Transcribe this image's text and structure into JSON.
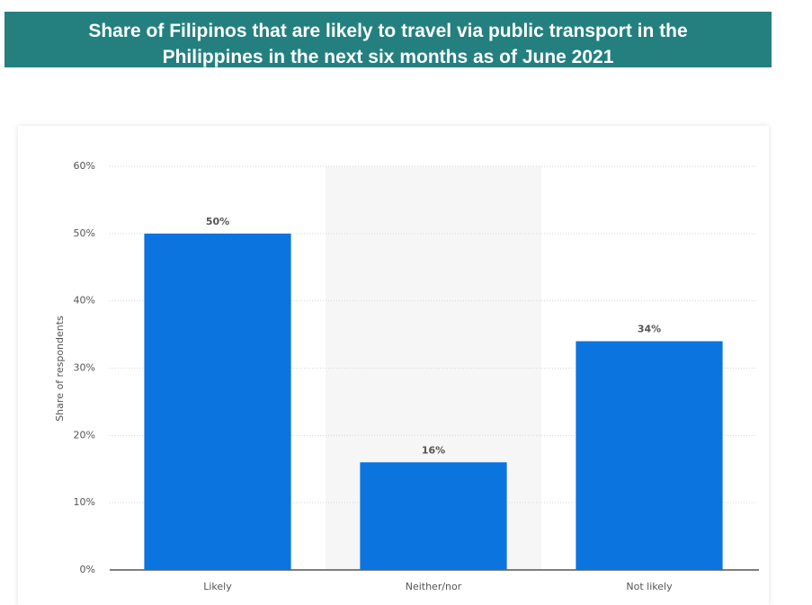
{
  "chart_data": {
    "type": "bar",
    "title": "Share of Filipinos that are likely to travel via public transport in the Philippines in the next six months as of June 2021",
    "y_label": "Share of respondents",
    "categories": [
      "Likely",
      "Neither/nor",
      "Not likely"
    ],
    "values": [
      50,
      16,
      34
    ],
    "value_labels": [
      "50%",
      "16%",
      "34%"
    ],
    "color": "#0b74de",
    "ylim": [
      0,
      60
    ],
    "yticks": [
      {
        "value": 0,
        "label": "0%"
      },
      {
        "value": 10,
        "label": "10%"
      },
      {
        "value": 20,
        "label": "20%"
      },
      {
        "value": 30,
        "label": "30%"
      },
      {
        "value": 40,
        "label": "40%"
      },
      {
        "value": 50,
        "label": "50%"
      },
      {
        "value": 60,
        "label": "60%"
      }
    ],
    "grid": true
  }
}
